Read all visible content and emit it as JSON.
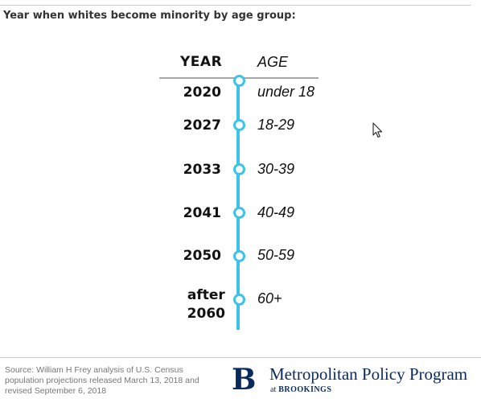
{
  "title": "Year when whites become minority by age group:",
  "headers": {
    "year": "YEAR",
    "age": "AGE"
  },
  "timeline": [
    {
      "year": "2020",
      "age": "under 18"
    },
    {
      "year": "2027",
      "age": "18-29"
    },
    {
      "year": "2033",
      "age": "30-39"
    },
    {
      "year": "2041",
      "age": "40-49"
    },
    {
      "year": "2050",
      "age": "50-59"
    },
    {
      "year": "after\n2060",
      "age": "60+"
    }
  ],
  "source": "Source: William H Frey analysis of U.S. Census population projections released March 13, 2018 and revised September 6, 2018",
  "logo": {
    "letter": "B",
    "name": "Metropolitan Policy Program",
    "at": "at",
    "org": "BROOKINGS"
  },
  "colors": {
    "timeline": "#3cc4e8",
    "brand": "#0a2a5e"
  },
  "icons": {
    "cursor": "mouse-pointer-icon"
  }
}
